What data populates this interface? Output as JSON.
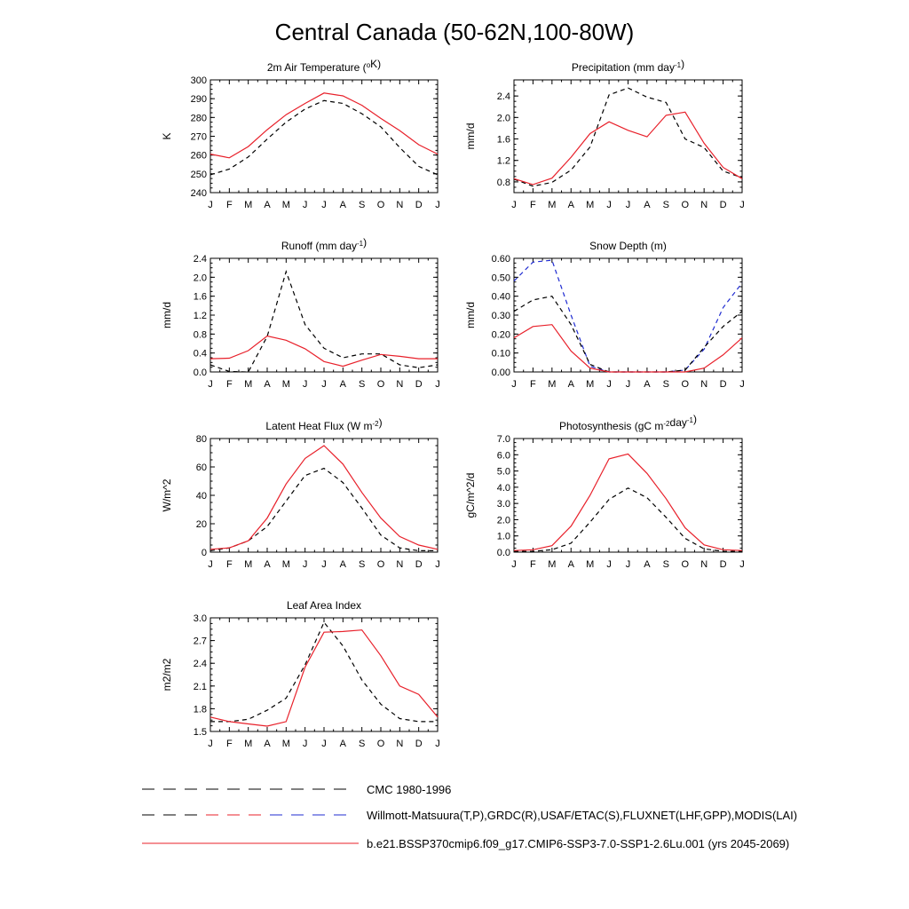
{
  "figure": {
    "title": "Central Canada (50-62N,100-80W)",
    "months": [
      "J",
      "F",
      "M",
      "A",
      "M",
      "J",
      "J",
      "A",
      "S",
      "O",
      "N",
      "D",
      "J"
    ],
    "colors": {
      "model": "#e8202a",
      "obs": "#000000",
      "obs2": "#1f2bd1"
    }
  },
  "legend": {
    "items": [
      {
        "label": "CMC 1980-1996",
        "style": "dash-black"
      },
      {
        "label": "Willmott-Matsuura(T,P),GRDC(R),USAF/ETAC(S),FLUXNET(LHF,GPP),MODIS(LAI)",
        "style": "dash-mixed"
      },
      {
        "label": "b.e21.BSSP370cmip6.f09_g17.CMIP6-SSP3-7.0-SSP1-2.6Lu.001 (yrs 2045-2069)",
        "style": "solid-red"
      }
    ]
  },
  "chart_data": [
    {
      "type": "line",
      "title": "2m Air Temperature (°K)",
      "ylabel": "K",
      "ylim": [
        240,
        300
      ],
      "yticks": [
        240,
        250,
        260,
        270,
        280,
        290,
        300
      ],
      "yfmt": 0,
      "x": [
        "J",
        "F",
        "M",
        "A",
        "M",
        "J",
        "J",
        "A",
        "S",
        "O",
        "N",
        "D",
        "J"
      ],
      "series": [
        {
          "style": "obs",
          "values": [
            249.5,
            252.5,
            259,
            268.5,
            277.5,
            284.5,
            289,
            287.5,
            282,
            275,
            264,
            254,
            249.5
          ]
        },
        {
          "style": "model",
          "values": [
            260.5,
            258.5,
            264.5,
            273.5,
            281.5,
            287.5,
            293,
            291.5,
            286.5,
            279.5,
            273,
            265.5,
            260.5
          ]
        }
      ]
    },
    {
      "type": "line",
      "title": "Precipitation (mm day-1)",
      "ylabel": "mm/d",
      "ylim": [
        0.6,
        2.7
      ],
      "yticks": [
        0.8,
        1.2,
        1.6,
        2.0,
        2.4
      ],
      "yfmt": 1,
      "x": [
        "J",
        "F",
        "M",
        "A",
        "M",
        "J",
        "J",
        "A",
        "S",
        "O",
        "N",
        "D",
        "J"
      ],
      "series": [
        {
          "style": "obs",
          "values": [
            0.85,
            0.72,
            0.79,
            1.02,
            1.45,
            2.42,
            2.55,
            2.38,
            2.28,
            1.6,
            1.44,
            1.0,
            0.88
          ]
        },
        {
          "style": "model",
          "values": [
            0.86,
            0.75,
            0.87,
            1.26,
            1.7,
            1.92,
            1.76,
            1.64,
            2.04,
            2.1,
            1.52,
            1.07,
            0.86
          ]
        }
      ]
    },
    {
      "type": "line",
      "title": "Runoff (mm day-1)",
      "ylabel": "mm/d",
      "ylim": [
        0,
        2.4
      ],
      "yticks": [
        0.0,
        0.4,
        0.8,
        1.2,
        1.6,
        2.0,
        2.4
      ],
      "yfmt": 1,
      "x": [
        "J",
        "F",
        "M",
        "A",
        "M",
        "J",
        "J",
        "A",
        "S",
        "O",
        "N",
        "D",
        "J"
      ],
      "series": [
        {
          "style": "obs",
          "values": [
            0.15,
            0.01,
            0.0,
            0.75,
            2.12,
            1.0,
            0.5,
            0.3,
            0.38,
            0.38,
            0.15,
            0.09,
            0.15
          ]
        },
        {
          "style": "model",
          "values": [
            0.28,
            0.29,
            0.45,
            0.76,
            0.67,
            0.49,
            0.22,
            0.12,
            0.25,
            0.37,
            0.33,
            0.28,
            0.28
          ]
        }
      ]
    },
    {
      "type": "line",
      "title": "Snow Depth (m)",
      "ylabel": "mm/d",
      "ylim": [
        0,
        0.6
      ],
      "yticks": [
        0.0,
        0.1,
        0.2,
        0.3,
        0.4,
        0.5,
        0.6
      ],
      "yfmt": 2,
      "x": [
        "J",
        "F",
        "M",
        "A",
        "M",
        "J",
        "J",
        "A",
        "S",
        "O",
        "N",
        "D",
        "J"
      ],
      "series": [
        {
          "style": "obs2",
          "values": [
            0.48,
            0.58,
            0.59,
            0.3,
            0.03,
            0.0,
            0.0,
            0.0,
            0.0,
            0.01,
            0.12,
            0.34,
            0.47
          ]
        },
        {
          "style": "obs",
          "values": [
            0.32,
            0.38,
            0.4,
            0.25,
            0.04,
            0.0,
            0.0,
            0.0,
            0.0,
            0.01,
            0.13,
            0.24,
            0.32
          ]
        },
        {
          "style": "model",
          "values": [
            0.18,
            0.24,
            0.25,
            0.11,
            0.02,
            0.0,
            0.0,
            0.0,
            0.0,
            0.0,
            0.02,
            0.09,
            0.18
          ]
        }
      ]
    },
    {
      "type": "line",
      "title": "Latent Heat Flux (W m-2)",
      "ylabel": "W/m^2",
      "ylim": [
        0,
        80
      ],
      "yticks": [
        0,
        20,
        40,
        60,
        80
      ],
      "yfmt": 0,
      "x": [
        "J",
        "F",
        "M",
        "A",
        "M",
        "J",
        "J",
        "A",
        "S",
        "O",
        "N",
        "D",
        "J"
      ],
      "series": [
        {
          "style": "obs",
          "values": [
            1,
            3,
            8,
            18,
            36,
            54,
            59,
            49,
            31,
            12,
            3,
            1,
            1
          ]
        },
        {
          "style": "model",
          "values": [
            2,
            3,
            8,
            24,
            48,
            66,
            75,
            62,
            42,
            24,
            11,
            5,
            2
          ]
        }
      ]
    },
    {
      "type": "line",
      "title": "Photosynthesis (gC m-2day-1)",
      "ylabel": "gC/m^2/d",
      "ylim": [
        0,
        7
      ],
      "yticks": [
        0.0,
        1.0,
        2.0,
        3.0,
        4.0,
        5.0,
        6.0,
        7.0
      ],
      "yfmt": 1,
      "x": [
        "J",
        "F",
        "M",
        "A",
        "M",
        "J",
        "J",
        "A",
        "S",
        "O",
        "N",
        "D",
        "J"
      ],
      "series": [
        {
          "style": "obs",
          "values": [
            0.05,
            0.05,
            0.15,
            0.55,
            1.85,
            3.25,
            3.95,
            3.35,
            2.15,
            0.85,
            0.2,
            0.05,
            0.05
          ]
        },
        {
          "style": "model",
          "values": [
            0.1,
            0.15,
            0.4,
            1.6,
            3.5,
            5.75,
            6.05,
            4.85,
            3.3,
            1.5,
            0.45,
            0.15,
            0.1
          ]
        }
      ]
    },
    {
      "type": "line",
      "title": "Leaf Area Index",
      "ylabel": "m2/m2",
      "ylim": [
        1.5,
        3.0
      ],
      "yticks": [
        1.5,
        1.8,
        2.1,
        2.4,
        2.7,
        3.0
      ],
      "yfmt": 1,
      "x": [
        "J",
        "F",
        "M",
        "A",
        "M",
        "J",
        "J",
        "A",
        "S",
        "O",
        "N",
        "D",
        "J"
      ],
      "series": [
        {
          "style": "obs",
          "values": [
            1.63,
            1.63,
            1.66,
            1.78,
            1.94,
            2.38,
            2.94,
            2.63,
            2.18,
            1.86,
            1.67,
            1.63,
            1.63
          ]
        },
        {
          "style": "model",
          "values": [
            1.69,
            1.63,
            1.6,
            1.57,
            1.63,
            2.35,
            2.81,
            2.82,
            2.84,
            2.5,
            2.1,
            1.99,
            1.69
          ]
        }
      ]
    }
  ]
}
